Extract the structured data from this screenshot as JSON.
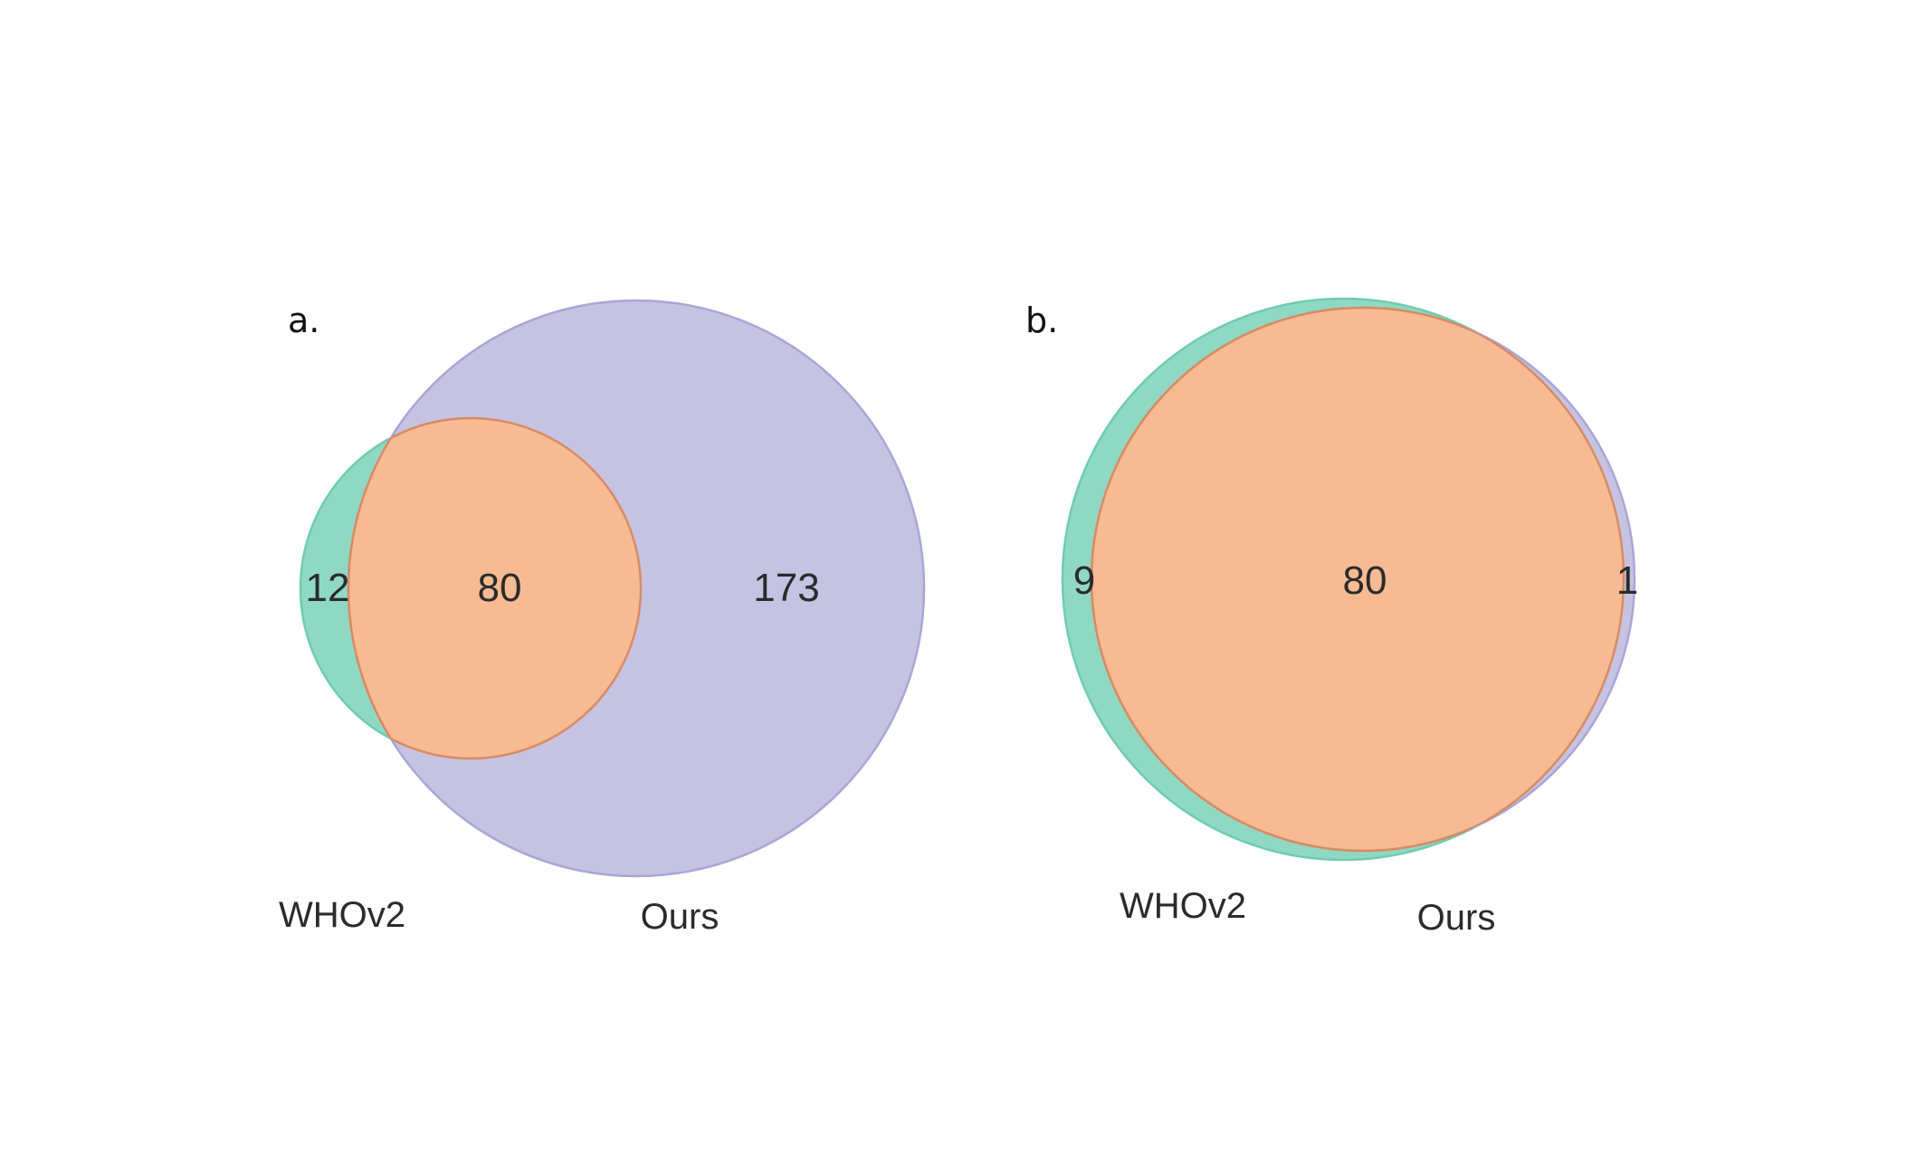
{
  "colors": {
    "whov2": "#8fd9c3",
    "ours": "#c6c3e2",
    "intersection": "#f6bb93",
    "whov2_edge": "#6fcbb0",
    "ours_edge": "#aaa5d6",
    "intersection_edge": "#d98a62"
  },
  "panels": [
    {
      "label": "a.",
      "sets": {
        "left": "WHOv2",
        "right": "Ours"
      },
      "counts": {
        "left_only": "12",
        "both": "80",
        "right_only": "173"
      }
    },
    {
      "label": "b.",
      "sets": {
        "left": "WHOv2",
        "right": "Ours"
      },
      "counts": {
        "left_only": "9",
        "both": "80",
        "right_only": "1"
      }
    }
  ]
}
